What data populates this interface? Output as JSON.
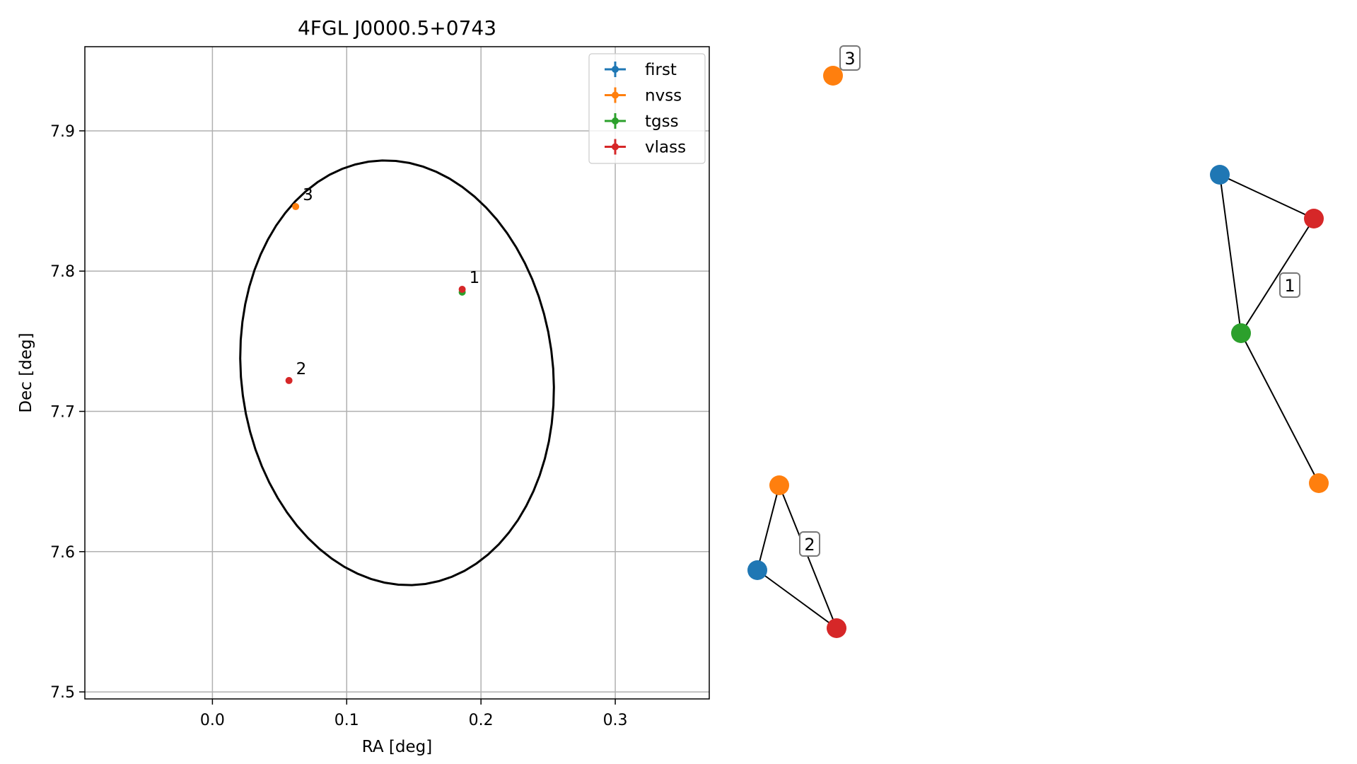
{
  "chart_data": [
    {
      "type": "scatter",
      "title": "4FGL J0000.5+0743",
      "xlabel": "RA [deg]",
      "ylabel": "Dec [deg]",
      "xlim": [
        -0.095,
        0.37
      ],
      "ylim": [
        7.495,
        7.96
      ],
      "xticks": [
        0.0,
        0.1,
        0.2,
        0.3
      ],
      "yticks": [
        7.5,
        7.6,
        7.7,
        7.8,
        7.9
      ],
      "xtick_labels": [
        "0.0",
        "0.1",
        "0.2",
        "0.3"
      ],
      "ytick_labels": [
        "7.5",
        "7.6",
        "7.7",
        "7.8",
        "7.9"
      ],
      "grid": true,
      "legend_position": "top-right",
      "ellipse": {
        "center": [
          0.1375,
          7.7275
        ],
        "semi_axis_ra": 0.116,
        "semi_axis_dec": 0.152,
        "angle_deg": 8,
        "color": "#000000"
      },
      "series": [
        {
          "name": "first",
          "color": "#1f77b4",
          "points": []
        },
        {
          "name": "nvss",
          "color": "#ff7f0e",
          "points": [
            {
              "x": 0.062,
              "y": 7.846
            }
          ]
        },
        {
          "name": "tgss",
          "color": "#2ca02c",
          "points": [
            {
              "x": 0.186,
              "y": 7.785
            }
          ]
        },
        {
          "name": "vlass",
          "color": "#d62728",
          "points": [
            {
              "x": 0.186,
              "y": 7.787
            },
            {
              "x": 0.057,
              "y": 7.722
            }
          ]
        }
      ],
      "annotations": [
        {
          "text": "1",
          "x": 0.186,
          "y": 7.787
        },
        {
          "text": "2",
          "x": 0.057,
          "y": 7.722
        },
        {
          "text": "3",
          "x": 0.062,
          "y": 7.846
        }
      ]
    },
    {
      "type": "network",
      "title": "",
      "groups": [
        {
          "label": "1",
          "nodes": [
            {
              "name": "first",
              "color": "#1f77b4"
            },
            {
              "name": "vlass",
              "color": "#d62728"
            },
            {
              "name": "tgss",
              "color": "#2ca02c"
            },
            {
              "name": "nvss",
              "color": "#ff7f0e"
            }
          ],
          "edges": [
            [
              "first",
              "vlass"
            ],
            [
              "first",
              "tgss"
            ],
            [
              "vlass",
              "tgss"
            ],
            [
              "tgss",
              "nvss"
            ]
          ]
        },
        {
          "label": "2",
          "nodes": [
            {
              "name": "nvss",
              "color": "#ff7f0e"
            },
            {
              "name": "first",
              "color": "#1f77b4"
            },
            {
              "name": "vlass",
              "color": "#d62728"
            }
          ],
          "edges": [
            [
              "nvss",
              "first"
            ],
            [
              "nvss",
              "vlass"
            ],
            [
              "first",
              "vlass"
            ]
          ]
        },
        {
          "label": "3",
          "nodes": [
            {
              "name": "nvss",
              "color": "#ff7f0e"
            }
          ],
          "edges": []
        }
      ]
    }
  ]
}
